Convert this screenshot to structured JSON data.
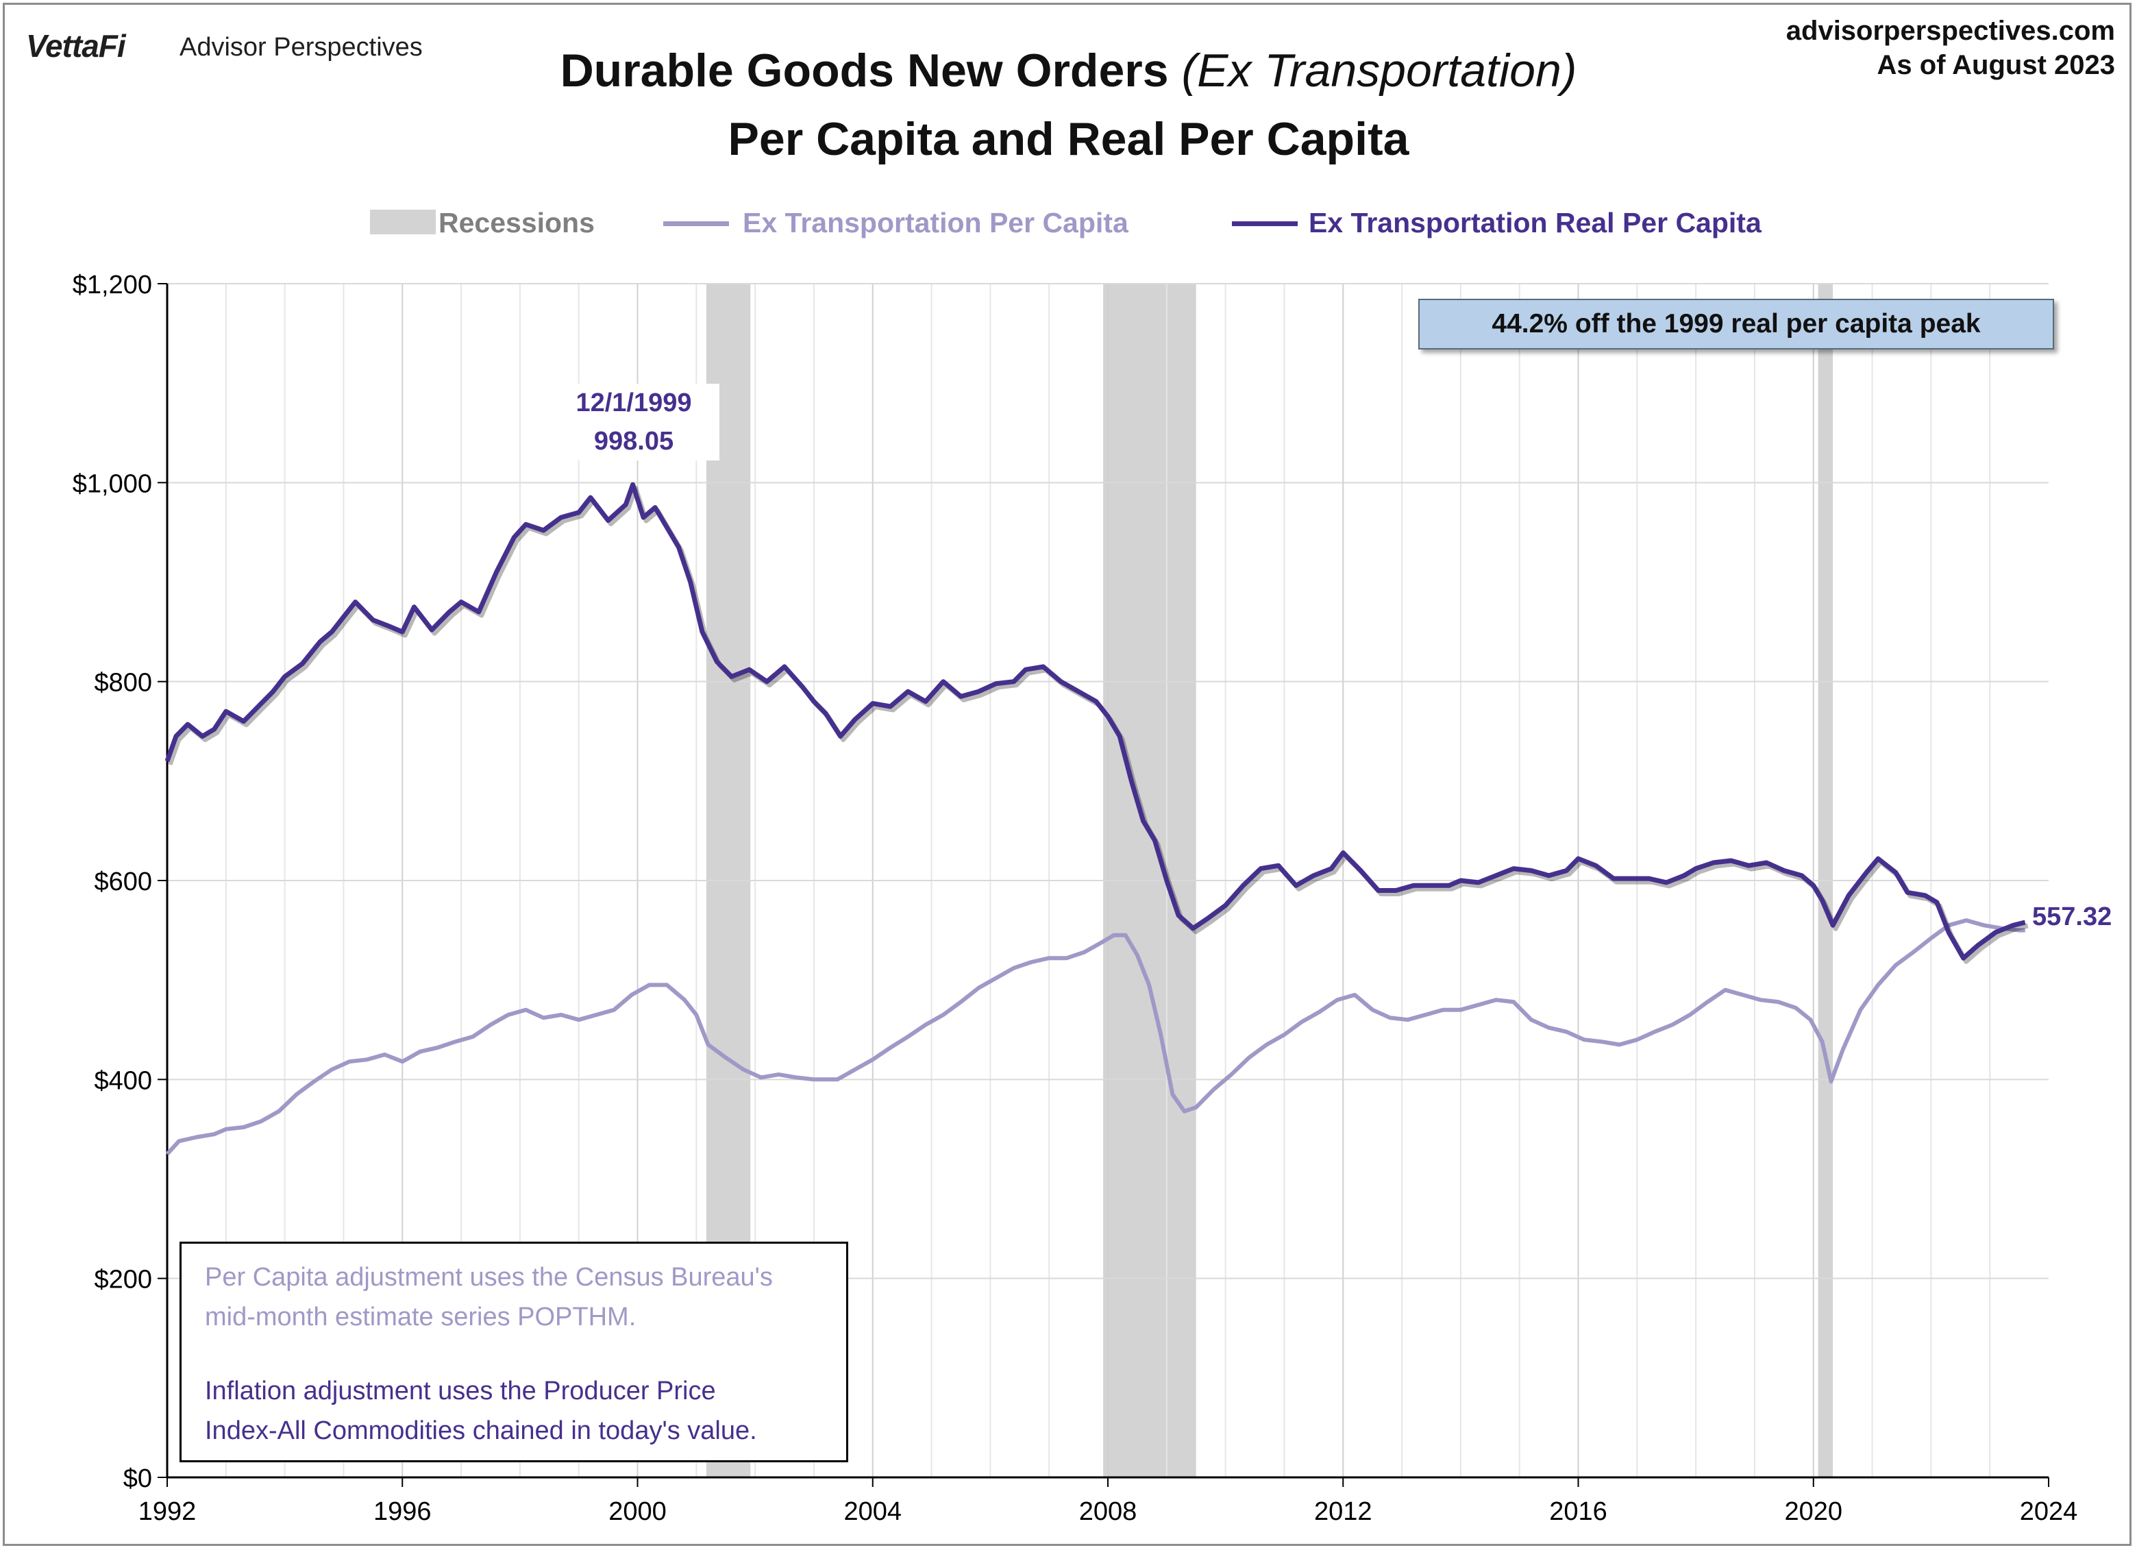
{
  "header": {
    "brand_logo": "VettaFi",
    "brand_name": "Advisor Perspectives",
    "site": "advisorperspectives.com",
    "as_of": "As of August 2023",
    "title_main": "Durable Goods New Orders ",
    "title_paren": "(Ex Transportation)",
    "title_line2": "Per Capita and Real Per Capita"
  },
  "legend": {
    "recessions": "Recessions",
    "nominal": "Ex Transportation Per Capita",
    "real": "Ex Transportation Real Per Capita"
  },
  "colors": {
    "nominal": "#9f99c7",
    "real": "#46308d",
    "recession": "#d3d3d3",
    "grid": "#d9d9d9",
    "callout_bg": "#b8cfe9"
  },
  "annotations": {
    "callout": "44.2% off the 1999 real per capita peak",
    "peak_date": "12/1/1999",
    "peak_value": "998.05",
    "last_value": "557.32",
    "note_line1": "Per Capita adjustment uses the Census Bureau's",
    "note_line2": "mid-month estimate series POPTHM.",
    "note_line3": "Inflation adjustment uses the Producer Price",
    "note_line4": "Index-All Commodities chained in today's value."
  },
  "chart_data": {
    "type": "line",
    "title": "Durable Goods New Orders (Ex Transportation) Per Capita and Real Per Capita",
    "xlim": [
      1992,
      2024
    ],
    "ylim": [
      0,
      1200
    ],
    "x_ticks": [
      "1992",
      "1996",
      "2000",
      "2004",
      "2008",
      "2012",
      "2016",
      "2020",
      "2024"
    ],
    "y_ticks": [
      "$0",
      "$200",
      "$400",
      "$600",
      "$800",
      "$1,000",
      "$1,200"
    ],
    "grid": true,
    "legend_position": "top",
    "recessions": [
      [
        2001.17,
        2001.92
      ],
      [
        2007.92,
        2009.5
      ],
      [
        2020.08,
        2020.33
      ]
    ],
    "series": [
      {
        "name": "Ex Transportation Real Per Capita",
        "points": [
          [
            1992.0,
            720
          ],
          [
            1992.15,
            745
          ],
          [
            1992.35,
            757
          ],
          [
            1992.6,
            745
          ],
          [
            1992.8,
            752
          ],
          [
            1993.0,
            770
          ],
          [
            1993.3,
            760
          ],
          [
            1993.5,
            772
          ],
          [
            1993.8,
            790
          ],
          [
            1994.0,
            805
          ],
          [
            1994.3,
            818
          ],
          [
            1994.6,
            840
          ],
          [
            1994.8,
            850
          ],
          [
            1995.0,
            865
          ],
          [
            1995.2,
            880
          ],
          [
            1995.5,
            862
          ],
          [
            1995.8,
            855
          ],
          [
            1996.0,
            850
          ],
          [
            1996.2,
            875
          ],
          [
            1996.5,
            852
          ],
          [
            1996.8,
            870
          ],
          [
            1997.0,
            880
          ],
          [
            1997.3,
            870
          ],
          [
            1997.6,
            910
          ],
          [
            1997.9,
            945
          ],
          [
            1998.1,
            958
          ],
          [
            1998.4,
            952
          ],
          [
            1998.7,
            965
          ],
          [
            1999.0,
            970
          ],
          [
            1999.2,
            985
          ],
          [
            1999.5,
            962
          ],
          [
            1999.8,
            978
          ],
          [
            1999.92,
            998
          ],
          [
            2000.1,
            965
          ],
          [
            2000.3,
            975
          ],
          [
            2000.5,
            955
          ],
          [
            2000.7,
            935
          ],
          [
            2000.9,
            900
          ],
          [
            2001.1,
            850
          ],
          [
            2001.35,
            820
          ],
          [
            2001.6,
            805
          ],
          [
            2001.9,
            812
          ],
          [
            2002.2,
            800
          ],
          [
            2002.5,
            815
          ],
          [
            2002.8,
            795
          ],
          [
            2003.0,
            780
          ],
          [
            2003.2,
            768
          ],
          [
            2003.45,
            745
          ],
          [
            2003.7,
            762
          ],
          [
            2004.0,
            778
          ],
          [
            2004.3,
            775
          ],
          [
            2004.6,
            790
          ],
          [
            2004.9,
            780
          ],
          [
            2005.2,
            800
          ],
          [
            2005.5,
            785
          ],
          [
            2005.8,
            790
          ],
          [
            2006.1,
            798
          ],
          [
            2006.4,
            800
          ],
          [
            2006.6,
            812
          ],
          [
            2006.9,
            815
          ],
          [
            2007.2,
            800
          ],
          [
            2007.5,
            790
          ],
          [
            2007.8,
            780
          ],
          [
            2008.0,
            765
          ],
          [
            2008.2,
            745
          ],
          [
            2008.4,
            700
          ],
          [
            2008.6,
            660
          ],
          [
            2008.8,
            640
          ],
          [
            2009.0,
            600
          ],
          [
            2009.2,
            565
          ],
          [
            2009.45,
            552
          ],
          [
            2009.7,
            562
          ],
          [
            2010.0,
            575
          ],
          [
            2010.3,
            595
          ],
          [
            2010.6,
            612
          ],
          [
            2010.9,
            615
          ],
          [
            2011.2,
            595
          ],
          [
            2011.5,
            605
          ],
          [
            2011.8,
            612
          ],
          [
            2012.0,
            628
          ],
          [
            2012.3,
            610
          ],
          [
            2012.6,
            590
          ],
          [
            2012.9,
            590
          ],
          [
            2013.2,
            595
          ],
          [
            2013.5,
            595
          ],
          [
            2013.8,
            595
          ],
          [
            2014.0,
            600
          ],
          [
            2014.3,
            598
          ],
          [
            2014.6,
            605
          ],
          [
            2014.9,
            612
          ],
          [
            2015.2,
            610
          ],
          [
            2015.5,
            605
          ],
          [
            2015.8,
            610
          ],
          [
            2016.0,
            622
          ],
          [
            2016.3,
            615
          ],
          [
            2016.6,
            602
          ],
          [
            2016.9,
            602
          ],
          [
            2017.2,
            602
          ],
          [
            2017.5,
            598
          ],
          [
            2017.8,
            605
          ],
          [
            2018.0,
            612
          ],
          [
            2018.3,
            618
          ],
          [
            2018.6,
            620
          ],
          [
            2018.9,
            615
          ],
          [
            2019.2,
            618
          ],
          [
            2019.5,
            610
          ],
          [
            2019.8,
            605
          ],
          [
            2020.0,
            595
          ],
          [
            2020.15,
            580
          ],
          [
            2020.33,
            555
          ],
          [
            2020.6,
            585
          ],
          [
            2020.9,
            608
          ],
          [
            2021.1,
            622
          ],
          [
            2021.4,
            608
          ],
          [
            2021.6,
            588
          ],
          [
            2021.9,
            585
          ],
          [
            2022.1,
            578
          ],
          [
            2022.3,
            548
          ],
          [
            2022.55,
            522
          ],
          [
            2022.8,
            535
          ],
          [
            2023.1,
            548
          ],
          [
            2023.4,
            555
          ],
          [
            2023.6,
            558
          ]
        ]
      },
      {
        "name": "Ex Transportation Per Capita",
        "points": [
          [
            1992.0,
            325
          ],
          [
            1992.2,
            338
          ],
          [
            1992.5,
            342
          ],
          [
            1992.8,
            345
          ],
          [
            1993.0,
            350
          ],
          [
            1993.3,
            352
          ],
          [
            1993.6,
            358
          ],
          [
            1993.9,
            368
          ],
          [
            1994.2,
            385
          ],
          [
            1994.5,
            398
          ],
          [
            1994.8,
            410
          ],
          [
            1995.1,
            418
          ],
          [
            1995.4,
            420
          ],
          [
            1995.7,
            425
          ],
          [
            1996.0,
            418
          ],
          [
            1996.3,
            428
          ],
          [
            1996.6,
            432
          ],
          [
            1996.9,
            438
          ],
          [
            1997.2,
            443
          ],
          [
            1997.5,
            455
          ],
          [
            1997.8,
            465
          ],
          [
            1998.1,
            470
          ],
          [
            1998.4,
            462
          ],
          [
            1998.7,
            465
          ],
          [
            1999.0,
            460
          ],
          [
            1999.3,
            465
          ],
          [
            1999.6,
            470
          ],
          [
            1999.9,
            485
          ],
          [
            2000.2,
            495
          ],
          [
            2000.5,
            495
          ],
          [
            2000.8,
            480
          ],
          [
            2001.0,
            465
          ],
          [
            2001.2,
            435
          ],
          [
            2001.5,
            422
          ],
          [
            2001.8,
            410
          ],
          [
            2002.1,
            402
          ],
          [
            2002.4,
            405
          ],
          [
            2002.7,
            402
          ],
          [
            2003.0,
            400
          ],
          [
            2003.4,
            400
          ],
          [
            2003.7,
            410
          ],
          [
            2004.0,
            420
          ],
          [
            2004.3,
            432
          ],
          [
            2004.6,
            443
          ],
          [
            2004.9,
            455
          ],
          [
            2005.2,
            465
          ],
          [
            2005.5,
            478
          ],
          [
            2005.8,
            492
          ],
          [
            2006.1,
            502
          ],
          [
            2006.4,
            512
          ],
          [
            2006.7,
            518
          ],
          [
            2007.0,
            522
          ],
          [
            2007.3,
            522
          ],
          [
            2007.6,
            528
          ],
          [
            2007.9,
            538
          ],
          [
            2008.1,
            545
          ],
          [
            2008.3,
            545
          ],
          [
            2008.5,
            525
          ],
          [
            2008.7,
            495
          ],
          [
            2008.9,
            445
          ],
          [
            2009.1,
            385
          ],
          [
            2009.3,
            368
          ],
          [
            2009.5,
            372
          ],
          [
            2009.8,
            390
          ],
          [
            2010.1,
            405
          ],
          [
            2010.4,
            422
          ],
          [
            2010.7,
            435
          ],
          [
            2011.0,
            445
          ],
          [
            2011.3,
            458
          ],
          [
            2011.6,
            468
          ],
          [
            2011.9,
            480
          ],
          [
            2012.2,
            485
          ],
          [
            2012.5,
            470
          ],
          [
            2012.8,
            462
          ],
          [
            2013.1,
            460
          ],
          [
            2013.4,
            465
          ],
          [
            2013.7,
            470
          ],
          [
            2014.0,
            470
          ],
          [
            2014.3,
            475
          ],
          [
            2014.6,
            480
          ],
          [
            2014.9,
            478
          ],
          [
            2015.2,
            460
          ],
          [
            2015.5,
            452
          ],
          [
            2015.8,
            448
          ],
          [
            2016.1,
            440
          ],
          [
            2016.4,
            438
          ],
          [
            2016.7,
            435
          ],
          [
            2017.0,
            440
          ],
          [
            2017.3,
            448
          ],
          [
            2017.6,
            455
          ],
          [
            2017.9,
            465
          ],
          [
            2018.2,
            478
          ],
          [
            2018.5,
            490
          ],
          [
            2018.8,
            485
          ],
          [
            2019.1,
            480
          ],
          [
            2019.4,
            478
          ],
          [
            2019.7,
            472
          ],
          [
            2019.95,
            460
          ],
          [
            2020.15,
            438
          ],
          [
            2020.3,
            398
          ],
          [
            2020.5,
            430
          ],
          [
            2020.8,
            470
          ],
          [
            2021.1,
            495
          ],
          [
            2021.4,
            515
          ],
          [
            2021.7,
            528
          ],
          [
            2022.0,
            542
          ],
          [
            2022.3,
            555
          ],
          [
            2022.6,
            560
          ],
          [
            2022.9,
            555
          ],
          [
            2023.2,
            552
          ],
          [
            2023.5,
            550
          ],
          [
            2023.6,
            550
          ]
        ]
      }
    ]
  }
}
